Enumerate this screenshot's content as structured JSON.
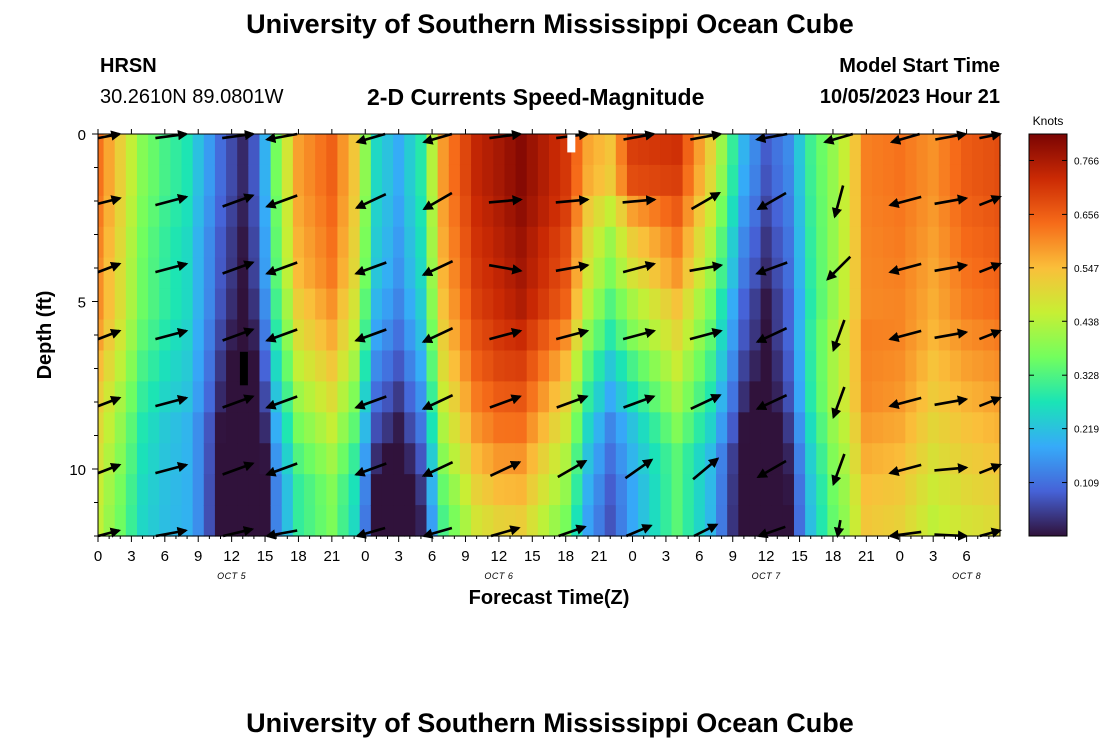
{
  "header": {
    "title": "University of Southern Mississippi Ocean Cube",
    "station": "HRSN",
    "coordinates": "30.2610N  89.0801W",
    "subtitle": "2-D Currents Speed-Magnitude",
    "model_start_label": "Model Start Time",
    "model_start_value": "10/05/2023 Hour 21"
  },
  "footer": {
    "title": "University of Southern Mississippi Ocean Cube"
  },
  "chart_data": {
    "type": "heatmap",
    "title": "2-D Currents Speed-Magnitude",
    "xlabel": "Forecast Time(Z)",
    "ylabel": "Depth (ft)",
    "x_start_hour": 0,
    "x_end_hour": 81,
    "x_step_hours": 3,
    "x_tick_labels": [
      "0",
      "3",
      "6",
      "9",
      "12",
      "15",
      "18",
      "21",
      "0",
      "3",
      "6",
      "9",
      "12",
      "15",
      "18",
      "21",
      "0",
      "3",
      "6",
      "9",
      "12",
      "15",
      "18",
      "21",
      "0",
      "3",
      "6"
    ],
    "date_labels": [
      {
        "label": "OCT 5",
        "hour": 12
      },
      {
        "label": "OCT 6",
        "hour": 36
      },
      {
        "label": "OCT 7",
        "hour": 60
      },
      {
        "label": "OCT 8",
        "hour": 78
      }
    ],
    "ylim": [
      0,
      12
    ],
    "y_ticks": [
      0,
      5,
      10
    ],
    "y_tick_labels": [
      "0",
      "5",
      "10"
    ],
    "colorbar": {
      "unit": "Knots",
      "min": 0,
      "max": 0.82,
      "ticks": [
        0.109,
        0.219,
        0.328,
        0.438,
        0.547,
        0.656,
        0.766
      ],
      "tick_labels": [
        "0.109",
        "0.219",
        "0.328",
        "0.438",
        "0.547",
        "0.656",
        "0.766"
      ],
      "stops": [
        "#30123b",
        "#4662d7",
        "#36aaf9",
        "#1ae4b6",
        "#72fe5e",
        "#c7ef34",
        "#fabf3a",
        "#f66b19",
        "#cb2a04",
        "#7a0403"
      ]
    },
    "depth_rows": [
      0,
      1,
      2,
      3,
      4,
      5,
      6,
      7,
      8,
      9,
      10,
      11,
      12
    ],
    "speed_profile": [
      {
        "hour": 0,
        "speed": 0.6
      },
      {
        "hour": 2,
        "speed": 0.5
      },
      {
        "hour": 4,
        "speed": 0.38
      },
      {
        "hour": 6,
        "speed": 0.33
      },
      {
        "hour": 8,
        "speed": 0.3
      },
      {
        "hour": 9.5,
        "speed": 0.22
      },
      {
        "hour": 11,
        "speed": 0.12
      },
      {
        "hour": 13,
        "speed": 0.03
      },
      {
        "hour": 14.5,
        "speed": 0.1
      },
      {
        "hour": 16,
        "speed": 0.35
      },
      {
        "hour": 18,
        "speed": 0.55
      },
      {
        "hour": 21,
        "speed": 0.62
      },
      {
        "hour": 23,
        "speed": 0.5
      },
      {
        "hour": 25,
        "speed": 0.22
      },
      {
        "hour": 27,
        "speed": 0.15
      },
      {
        "hour": 29,
        "speed": 0.25
      },
      {
        "hour": 31,
        "speed": 0.55
      },
      {
        "hour": 34,
        "speed": 0.7
      },
      {
        "hour": 38,
        "speed": 0.76
      },
      {
        "hour": 42,
        "speed": 0.65
      },
      {
        "hour": 44,
        "speed": 0.5
      },
      {
        "hour": 46,
        "speed": 0.45
      },
      {
        "hour": 48,
        "speed": 0.6
      },
      {
        "hour": 52,
        "speed": 0.64
      },
      {
        "hour": 55,
        "speed": 0.45
      },
      {
        "hour": 58,
        "speed": 0.15
      },
      {
        "hour": 60,
        "speed": 0.05
      },
      {
        "hour": 62,
        "speed": 0.12
      },
      {
        "hour": 64,
        "speed": 0.3
      },
      {
        "hour": 67,
        "speed": 0.45
      },
      {
        "hour": 69,
        "speed": 0.6
      },
      {
        "hour": 72,
        "speed": 0.6
      },
      {
        "hour": 75,
        "speed": 0.55
      },
      {
        "hour": 78,
        "speed": 0.6
      },
      {
        "hour": 81,
        "speed": 0.62
      }
    ],
    "hour_speed_modifiers": [
      {
        "hour": 0,
        "rows": [
          0.03,
          0.03,
          0.02,
          0.01,
          0,
          0,
          -0.02,
          -0.05,
          -0.08,
          -0.1,
          -0.12,
          -0.14,
          -0.15
        ]
      },
      {
        "hour": 9,
        "rows": [
          -0.03,
          -0.03,
          -0.04,
          -0.05,
          -0.05,
          -0.05,
          -0.06,
          -0.07,
          -0.08,
          -0.1,
          -0.1,
          -0.1,
          -0.1
        ]
      },
      {
        "hour": 18,
        "rows": [
          0.03,
          0.03,
          0.02,
          0.01,
          0,
          -0.03,
          -0.06,
          -0.1,
          -0.14,
          -0.18,
          -0.22,
          -0.25,
          -0.25
        ]
      },
      {
        "hour": 36,
        "rows": [
          0.04,
          0.04,
          0.03,
          0.02,
          0.01,
          0,
          -0.02,
          -0.04,
          -0.07,
          -0.1,
          -0.14,
          -0.18,
          -0.22
        ]
      },
      {
        "hour": 42,
        "rows": [
          0.06,
          0.06,
          0.05,
          0.03,
          0.02,
          0,
          -0.05,
          -0.1,
          -0.14,
          -0.18,
          -0.22,
          -0.25,
          -0.28
        ]
      },
      {
        "hour": 48,
        "rows": [
          0.1,
          0.08,
          -0.02,
          -0.08,
          -0.12,
          -0.18,
          -0.22,
          -0.28,
          -0.33,
          -0.38,
          -0.4,
          -0.42,
          -0.42
        ]
      },
      {
        "hour": 52,
        "rows": [
          0.08,
          0.06,
          0.02,
          -0.02,
          -0.05,
          -0.1,
          -0.14,
          -0.18,
          -0.22,
          -0.26,
          -0.3,
          -0.3,
          -0.3
        ]
      },
      {
        "hour": 66,
        "rows": [
          0,
          0,
          0,
          0,
          0,
          0,
          0.02,
          0.02,
          0.02,
          0,
          -0.02,
          -0.04,
          -0.05
        ]
      },
      {
        "hour": 78,
        "rows": [
          0.06,
          0.06,
          0.05,
          0.04,
          0.03,
          0.02,
          0,
          -0.02,
          -0.04,
          -0.06,
          -0.08,
          -0.1,
          -0.12
        ]
      }
    ],
    "vectors": {
      "hours": [
        0,
        6,
        12,
        16,
        24,
        30,
        36,
        42,
        48,
        54,
        60,
        66,
        72,
        76,
        80
      ],
      "depths": [
        0,
        2,
        4,
        6,
        8,
        10,
        12
      ],
      "angles_deg": [
        [
          15,
          15,
          15,
          200,
          210,
          210,
          15,
          15,
          20,
          20,
          200,
          210,
          210,
          20,
          15
        ],
        [
          10,
          15,
          20,
          200,
          205,
          210,
          5,
          5,
          5,
          30,
          210,
          255,
          195,
          10,
          15
        ],
        [
          15,
          15,
          20,
          200,
          200,
          205,
          350,
          10,
          15,
          10,
          200,
          225,
          195,
          10,
          15
        ],
        [
          15,
          15,
          20,
          200,
          200,
          205,
          15,
          15,
          15,
          15,
          205,
          250,
          195,
          10,
          15
        ],
        [
          15,
          15,
          20,
          200,
          200,
          205,
          20,
          20,
          20,
          25,
          205,
          250,
          195,
          10,
          15
        ],
        [
          15,
          15,
          20,
          200,
          200,
          205,
          25,
          30,
          35,
          40,
          210,
          250,
          195,
          5,
          15
        ],
        [
          20,
          20,
          25,
          200,
          210,
          210,
          30,
          35,
          40,
          45,
          215,
          265,
          195,
          355,
          20
        ]
      ]
    },
    "missing_markers": [
      {
        "hour": 42.5,
        "depth_top": 0,
        "depth_bottom": 0.55,
        "color": "#ffffff"
      },
      {
        "hour": 13.1,
        "depth_top": 6.5,
        "depth_bottom": 7.5,
        "color": "#000000"
      }
    ]
  }
}
